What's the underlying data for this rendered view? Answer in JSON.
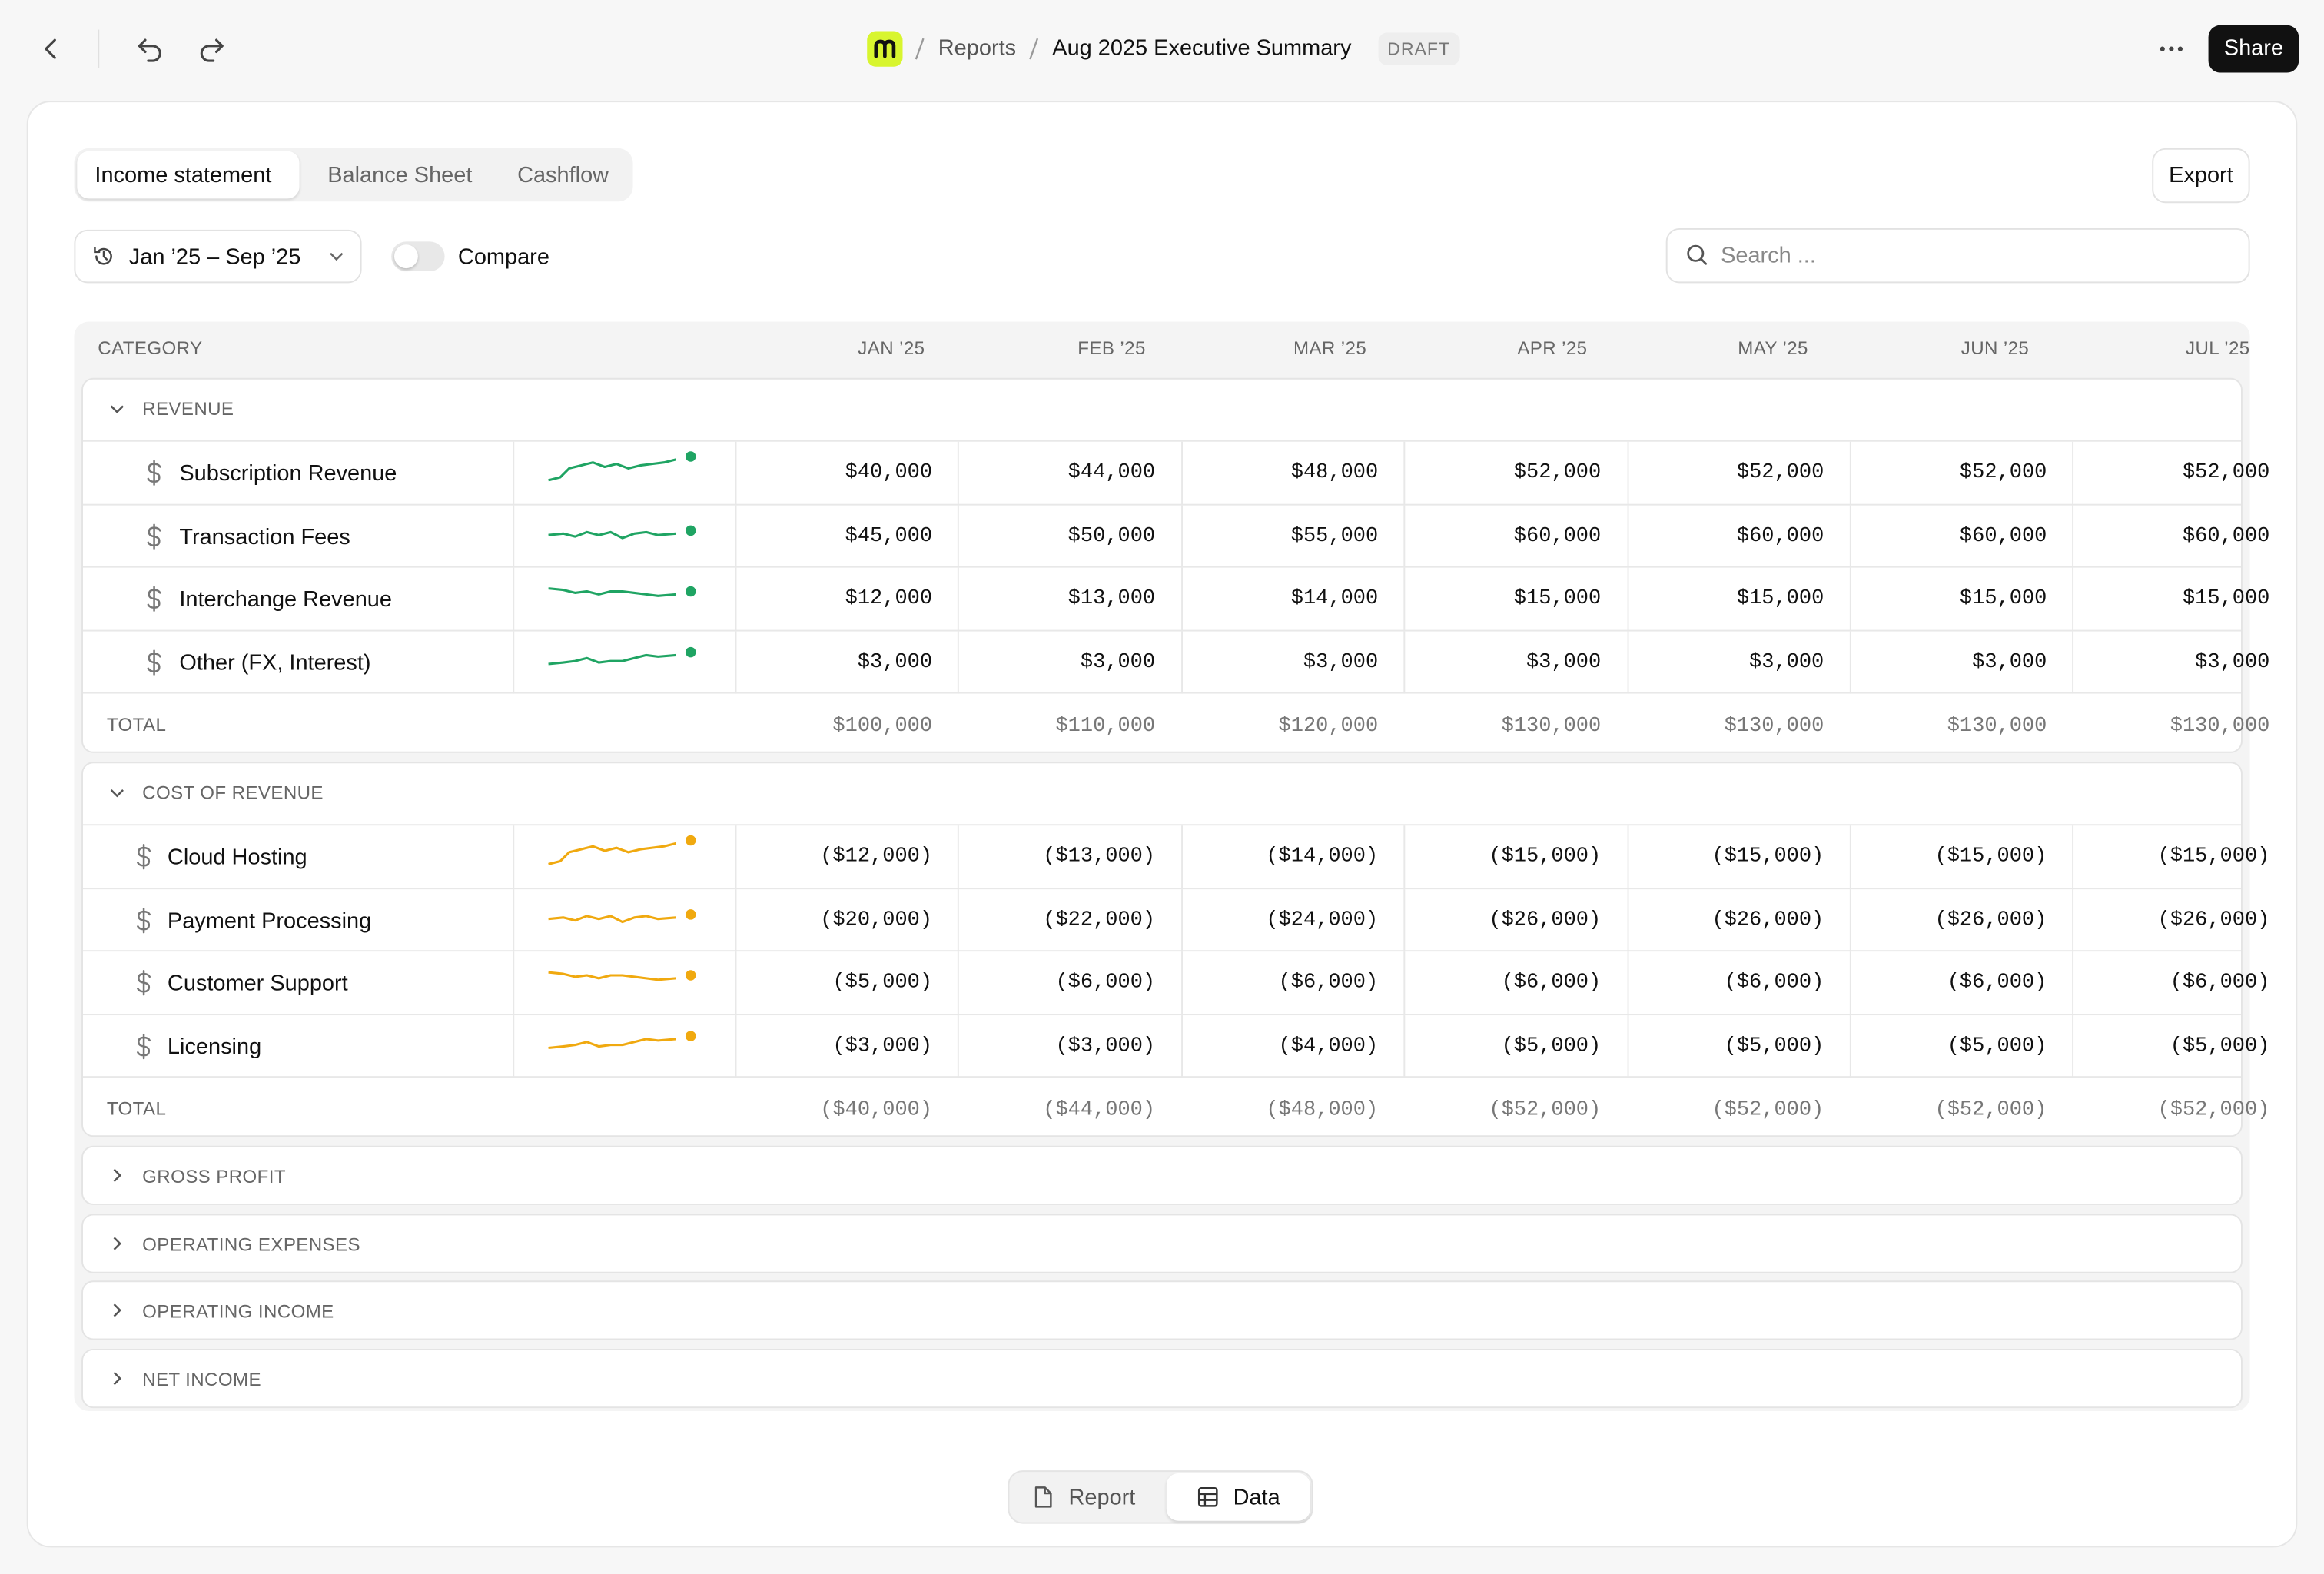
{
  "header": {
    "breadcrumb": [
      "Reports",
      "Aug 2025 Executive Summary"
    ],
    "badge": "DRAFT",
    "share": "Share"
  },
  "tabs": [
    "Income statement",
    "Balance Sheet",
    "Cashflow"
  ],
  "export": "Export",
  "filters": {
    "date_range": "Jan ’25 – Sep ’25",
    "compare": "Compare",
    "search_placeholder": "Search ..."
  },
  "table": {
    "columns": [
      "CATEGORY",
      "JAN ’25",
      "FEB ’25",
      "MAR ’25",
      "APR ’25",
      "MAY ’25",
      "JUN ’25",
      "JUL ’25"
    ],
    "total_label": "TOTAL",
    "sections": [
      {
        "name": "REVENUE",
        "rows": [
          {
            "label": "Subscription Revenue",
            "values": [
              "$40,000",
              "$44,000",
              "$48,000",
              "$52,000",
              "$52,000",
              "$52,000",
              "$52,000"
            ]
          },
          {
            "label": "Transaction Fees",
            "values": [
              "$45,000",
              "$50,000",
              "$55,000",
              "$60,000",
              "$60,000",
              "$60,000",
              "$60,000"
            ]
          },
          {
            "label": "Interchange Revenue",
            "values": [
              "$12,000",
              "$13,000",
              "$14,000",
              "$15,000",
              "$15,000",
              "$15,000",
              "$15,000"
            ]
          },
          {
            "label": "Other (FX, Interest)",
            "values": [
              "$3,000",
              "$3,000",
              "$3,000",
              "$3,000",
              "$3,000",
              "$3,000",
              "$3,000"
            ]
          }
        ],
        "total": [
          "$100,000",
          "$110,000",
          "$120,000",
          "$130,000",
          "$130,000",
          "$130,000",
          "$130,000"
        ]
      },
      {
        "name": "COST OF REVENUE",
        "rows": [
          {
            "label": "Cloud Hosting",
            "values": [
              "($12,000)",
              "($13,000)",
              "($14,000)",
              "($15,000)",
              "($15,000)",
              "($15,000)",
              "($15,000)"
            ]
          },
          {
            "label": "Payment Processing",
            "values": [
              "($20,000)",
              "($22,000)",
              "($24,000)",
              "($26,000)",
              "($26,000)",
              "($26,000)",
              "($26,000)"
            ]
          },
          {
            "label": "Customer Support",
            "values": [
              "($5,000)",
              "($6,000)",
              "($6,000)",
              "($6,000)",
              "($6,000)",
              "($6,000)",
              "($6,000)"
            ]
          },
          {
            "label": "Licensing",
            "values": [
              "($3,000)",
              "($3,000)",
              "($4,000)",
              "($5,000)",
              "($5,000)",
              "($5,000)",
              "($5,000)"
            ]
          }
        ],
        "total": [
          "($40,000)",
          "($44,000)",
          "($48,000)",
          "($52,000)",
          "($52,000)",
          "($52,000)",
          "($52,000)"
        ]
      },
      {
        "name": "GROSS PROFIT"
      },
      {
        "name": "OPERATING EXPENSES"
      },
      {
        "name": "OPERATING INCOME"
      },
      {
        "name": "NET INCOME"
      }
    ]
  },
  "view_toggle": [
    "Report",
    "Data"
  ]
}
